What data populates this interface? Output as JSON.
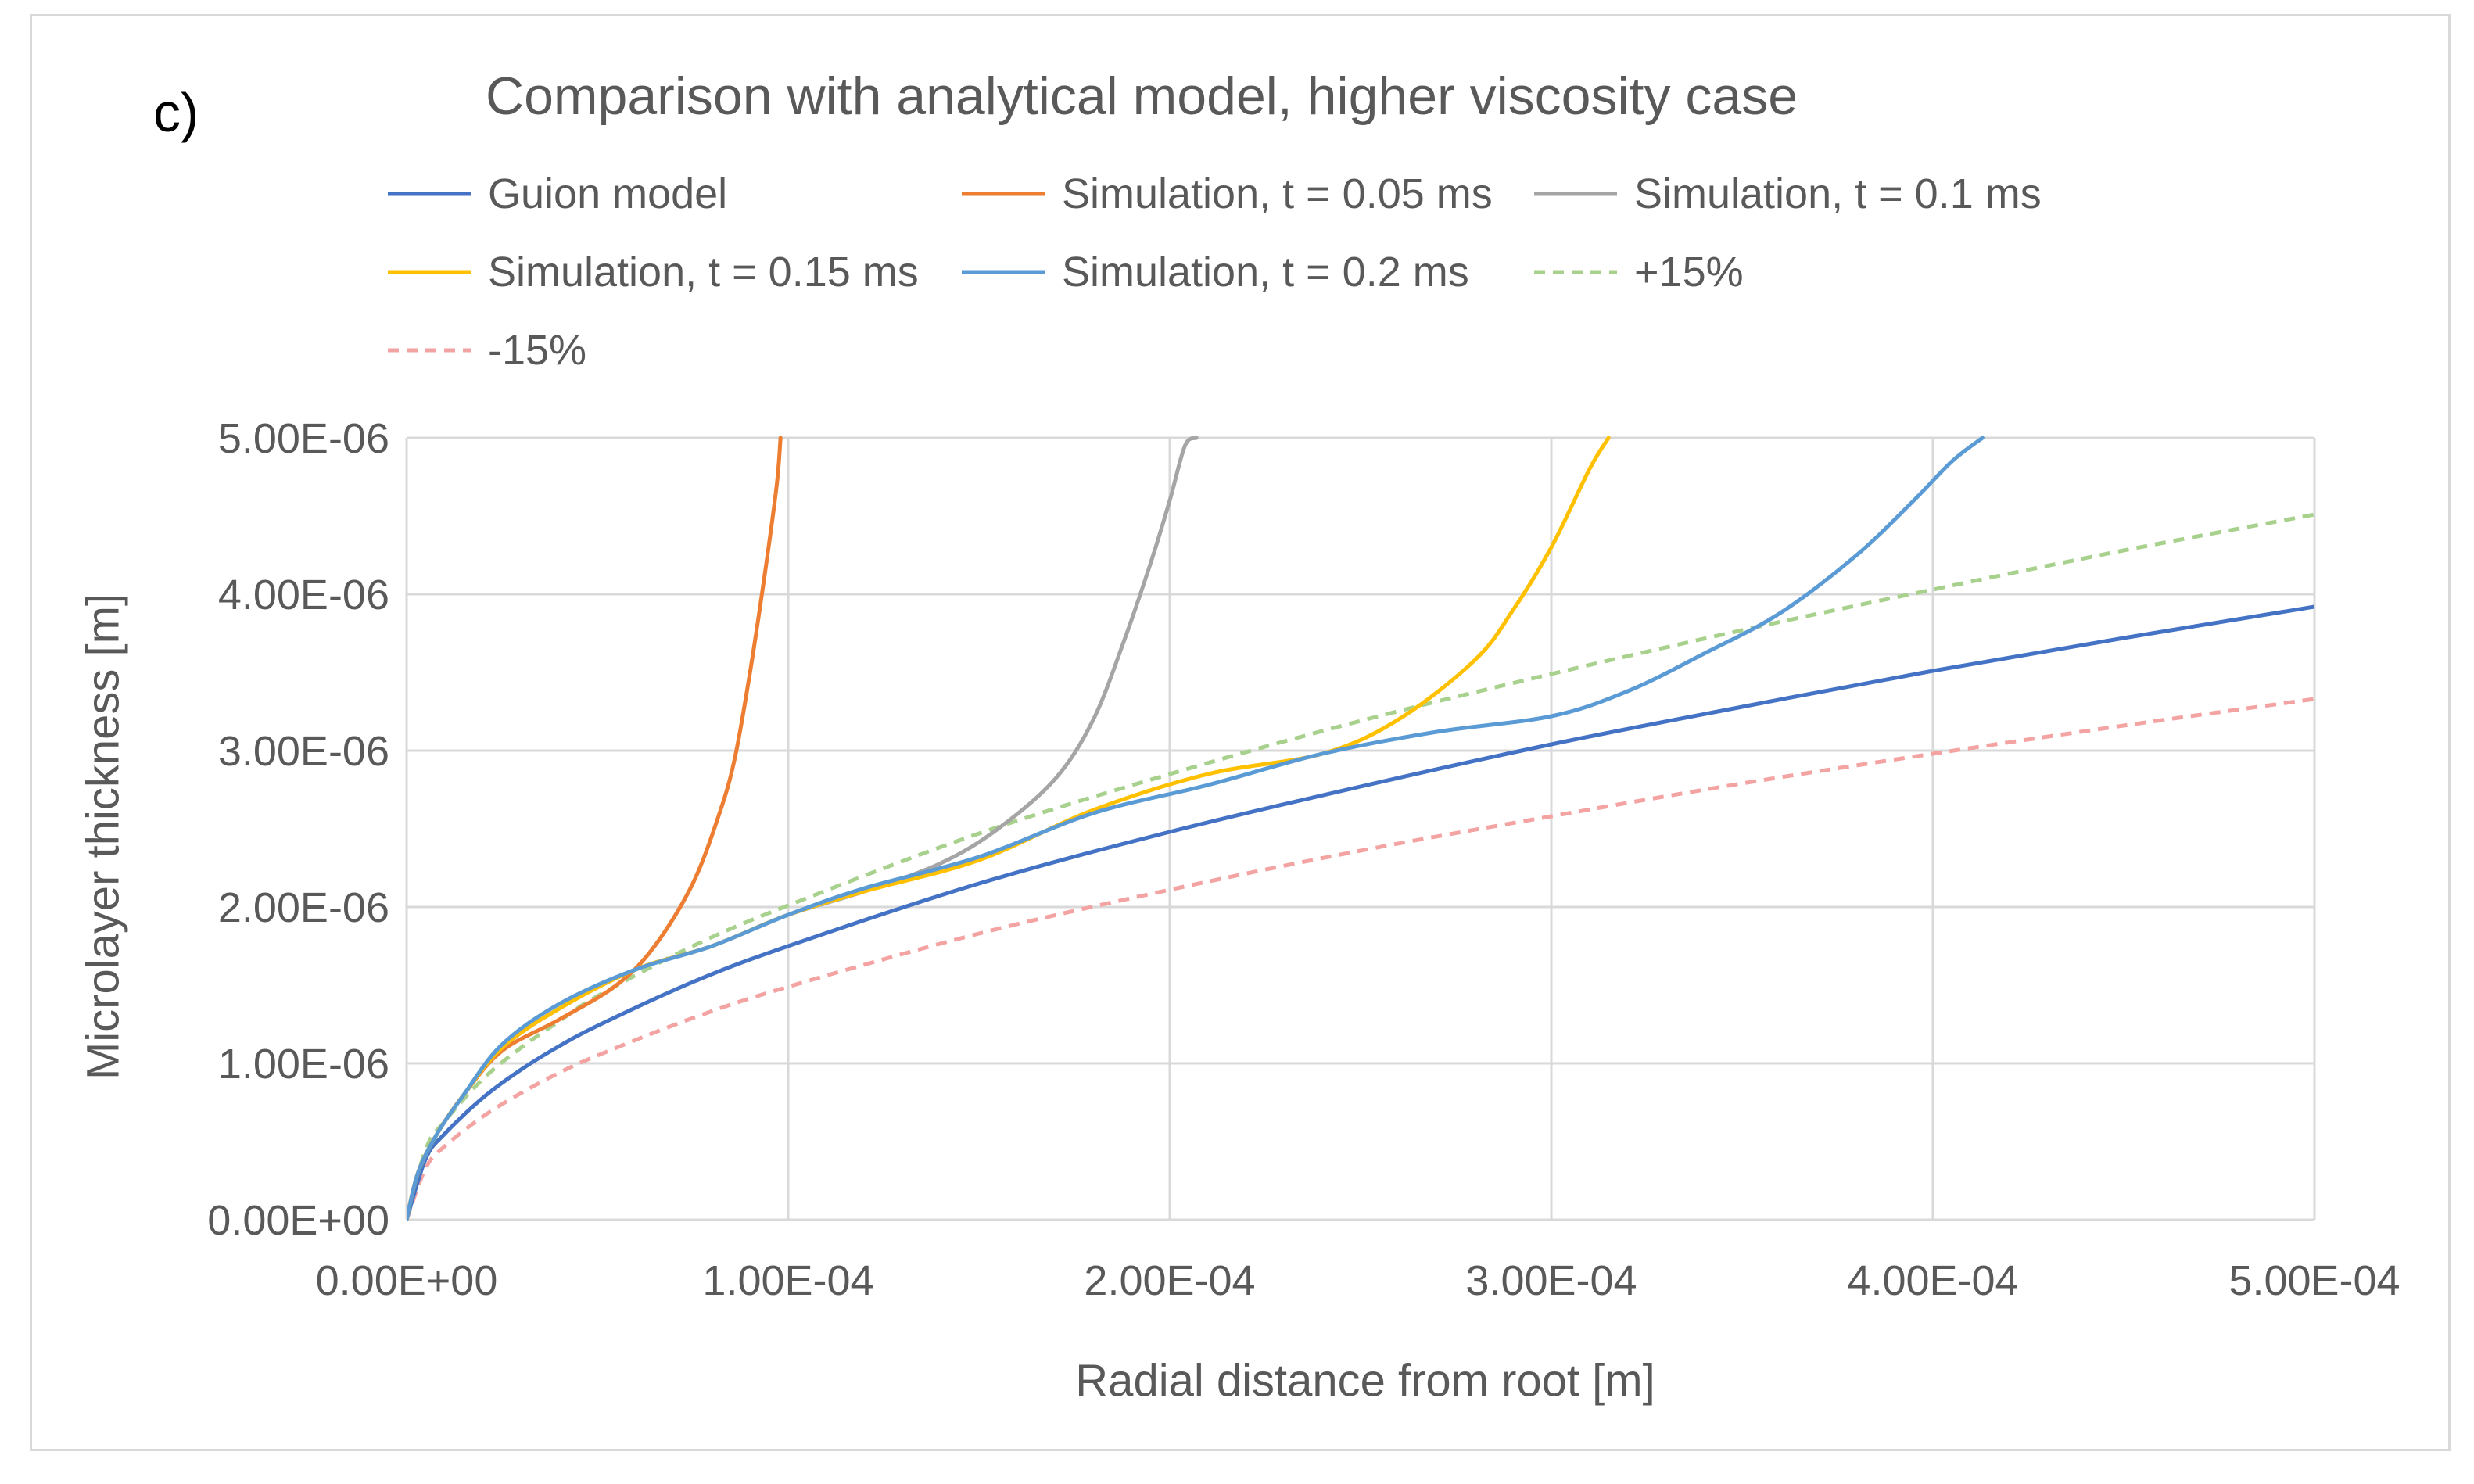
{
  "panel_label": "c)",
  "chart_data": {
    "type": "line",
    "title": "Comparison with analytical model, higher viscosity case",
    "xlabel": "Radial distance from root [m]",
    "ylabel": "Microlayer thickness [m]",
    "xlim": [
      0,
      0.0005
    ],
    "ylim": [
      0,
      5e-06
    ],
    "x_ticks": [
      {
        "value": 0,
        "label": "0.00E+00"
      },
      {
        "value": 0.0001,
        "label": "1.00E-04"
      },
      {
        "value": 0.0002,
        "label": "2.00E-04"
      },
      {
        "value": 0.0003,
        "label": "3.00E-04"
      },
      {
        "value": 0.0004,
        "label": "4.00E-04"
      },
      {
        "value": 0.0005,
        "label": "5.00E-04"
      }
    ],
    "y_ticks": [
      {
        "value": 0,
        "label": "0.00E+00"
      },
      {
        "value": 1e-06,
        "label": "1.00E-06"
      },
      {
        "value": 2e-06,
        "label": "2.00E-06"
      },
      {
        "value": 3e-06,
        "label": "3.00E-06"
      },
      {
        "value": 4e-06,
        "label": "4.00E-06"
      },
      {
        "value": 5e-06,
        "label": "5.00E-06"
      }
    ],
    "grid": true,
    "legend_position": "top",
    "series": [
      {
        "name": "Guion model",
        "color": "#4472c4",
        "dash": "solid",
        "unit_x": "1e-4 m",
        "unit_y": "1e-6 m",
        "x": [
          0,
          0.05,
          0.1,
          0.2,
          0.3,
          0.4,
          0.5,
          0.75,
          1.0,
          1.5,
          2.0,
          2.5,
          3.0,
          3.5,
          4.0,
          4.5,
          5.0
        ],
        "y": [
          0,
          0.39,
          0.55,
          0.78,
          0.96,
          1.11,
          1.24,
          1.52,
          1.75,
          2.15,
          2.48,
          2.77,
          3.04,
          3.28,
          3.51,
          3.72,
          3.92
        ]
      },
      {
        "name": "Simulation, t = 0.05 ms",
        "color": "#ed7d31",
        "dash": "solid",
        "unit_x": "1e-4 m",
        "unit_y": "1e-6 m",
        "x": [
          0,
          0.03,
          0.08,
          0.15,
          0.25,
          0.4,
          0.55,
          0.65,
          0.75,
          0.82,
          0.86,
          0.9,
          0.94,
          0.97,
          0.98
        ],
        "y": [
          0,
          0.3,
          0.55,
          0.8,
          1.08,
          1.28,
          1.5,
          1.75,
          2.15,
          2.6,
          2.95,
          3.5,
          4.15,
          4.7,
          5.0
        ]
      },
      {
        "name": "Simulation, t = 0.1 ms",
        "color": "#a5a5a5",
        "dash": "solid",
        "unit_x": "1e-4 m",
        "unit_y": "1e-6 m",
        "x": [
          0,
          0.03,
          0.08,
          0.15,
          0.25,
          0.4,
          0.6,
          0.8,
          1.0,
          1.2,
          1.4,
          1.55,
          1.7,
          1.8,
          1.88,
          1.95,
          2.0,
          2.04,
          2.07
        ],
        "y": [
          0,
          0.3,
          0.55,
          0.8,
          1.1,
          1.35,
          1.6,
          1.75,
          1.95,
          2.1,
          2.28,
          2.5,
          2.82,
          3.2,
          3.7,
          4.2,
          4.6,
          4.95,
          5.0
        ]
      },
      {
        "name": "Simulation, t = 0.15 ms",
        "color": "#ffc000",
        "dash": "solid",
        "unit_x": "1e-4 m",
        "unit_y": "1e-6 m",
        "x": [
          0,
          0.03,
          0.08,
          0.15,
          0.25,
          0.4,
          0.6,
          0.8,
          1.0,
          1.2,
          1.5,
          1.8,
          2.1,
          2.4,
          2.6,
          2.8,
          2.9,
          3.0,
          3.1,
          3.15
        ],
        "y": [
          0,
          0.3,
          0.55,
          0.8,
          1.1,
          1.35,
          1.6,
          1.75,
          1.95,
          2.1,
          2.3,
          2.62,
          2.85,
          2.98,
          3.2,
          3.58,
          3.9,
          4.3,
          4.8,
          5.0
        ]
      },
      {
        "name": "Simulation, t = 0.2 ms",
        "color": "#5b9bd5",
        "dash": "solid",
        "unit_x": "1e-4 m",
        "unit_y": "1e-6 m",
        "x": [
          0,
          0.03,
          0.08,
          0.15,
          0.25,
          0.4,
          0.6,
          0.8,
          1.0,
          1.2,
          1.5,
          1.8,
          2.1,
          2.4,
          2.7,
          3.0,
          3.2,
          3.4,
          3.6,
          3.8,
          3.95,
          4.05,
          4.13
        ],
        "y": [
          0,
          0.3,
          0.55,
          0.8,
          1.12,
          1.38,
          1.6,
          1.75,
          1.95,
          2.12,
          2.32,
          2.6,
          2.78,
          2.98,
          3.12,
          3.22,
          3.38,
          3.62,
          3.88,
          4.25,
          4.6,
          4.85,
          5.0
        ]
      },
      {
        "name": "+15%",
        "color": "#a9d18e",
        "dash": "dashed",
        "unit_x": "1e-4 m",
        "unit_y": "1e-6 m",
        "x": [
          0,
          0.05,
          0.1,
          0.2,
          0.3,
          0.4,
          0.5,
          0.75,
          1.0,
          1.5,
          2.0,
          2.5,
          3.0,
          3.5,
          4.0,
          4.5,
          5.0
        ],
        "y": [
          0,
          0.45,
          0.63,
          0.9,
          1.1,
          1.27,
          1.43,
          1.75,
          2.01,
          2.47,
          2.85,
          3.19,
          3.49,
          3.77,
          4.03,
          4.28,
          4.51
        ]
      },
      {
        "name": "-15%",
        "color": "#f4a3a3",
        "dash": "dashed",
        "unit_x": "1e-4 m",
        "unit_y": "1e-6 m",
        "x": [
          0,
          0.05,
          0.1,
          0.2,
          0.3,
          0.4,
          0.5,
          0.75,
          1.0,
          1.5,
          2.0,
          2.5,
          3.0,
          3.5,
          4.0,
          4.5,
          5.0
        ],
        "y": [
          0,
          0.33,
          0.47,
          0.66,
          0.81,
          0.94,
          1.05,
          1.29,
          1.49,
          1.83,
          2.11,
          2.36,
          2.58,
          2.79,
          2.98,
          3.16,
          3.33
        ]
      }
    ]
  }
}
